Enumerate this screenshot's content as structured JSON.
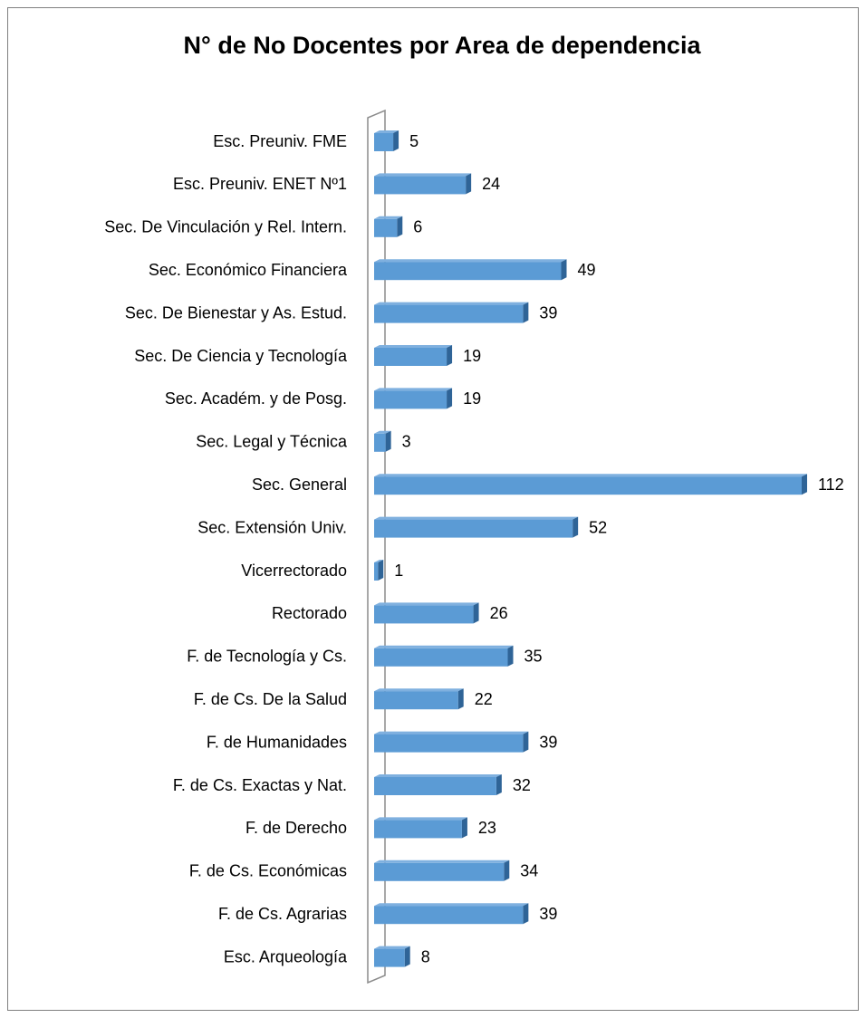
{
  "chart_data": {
    "type": "bar",
    "orientation": "horizontal",
    "title": "N° de No Docentes por Area de dependencia",
    "categories": [
      "Esc. Preuniv. FME",
      "Esc. Preuniv. ENET Nº1",
      "Sec. De Vinculación y Rel. Intern.",
      "Sec. Económico Financiera",
      "Sec. De Bienestar y As. Estud.",
      "Sec. De Ciencia y Tecnología",
      "Sec. Académ. y de Posg.",
      "Sec. Legal y Técnica",
      "Sec. General",
      "Sec. Extensión Univ.",
      "Vicerrectorado",
      "Rectorado",
      "F. de Tecnología y Cs.",
      "F. de Cs. De la Salud",
      "F. de Humanidades",
      "F. de Cs. Exactas y Nat.",
      "F.  de Derecho",
      "F. de Cs. Económicas",
      "F. de Cs. Agrarias",
      "Esc. Arqueología"
    ],
    "values": [
      5,
      24,
      6,
      49,
      39,
      19,
      19,
      3,
      112,
      52,
      1,
      26,
      35,
      22,
      39,
      32,
      23,
      34,
      39,
      8
    ],
    "color": "#5b9bd5",
    "grid": false
  }
}
